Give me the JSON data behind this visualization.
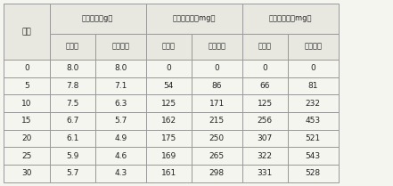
{
  "col_headers_top": [
    "秸秆重量（g）",
    "还原糖含量（mg）",
    "粗蛋白含量（mg）"
  ],
  "col_headers_sub": [
    "肠杆菌",
    "复合菌剂",
    "肠杆菌",
    "复合菌剂",
    "肠杆菌",
    "复合菌剂"
  ],
  "row_header": "天数",
  "rows": [
    [
      "0",
      "8.0",
      "8.0",
      "0",
      "0",
      "0",
      "0"
    ],
    [
      "5",
      "7.8",
      "7.1",
      "54",
      "86",
      "66",
      "81"
    ],
    [
      "10",
      "7.5",
      "6.3",
      "125",
      "171",
      "125",
      "232"
    ],
    [
      "15",
      "6.7",
      "5.7",
      "162",
      "215",
      "256",
      "453"
    ],
    [
      "20",
      "6.1",
      "4.9",
      "175",
      "250",
      "307",
      "521"
    ],
    [
      "25",
      "5.9",
      "4.6",
      "169",
      "265",
      "322",
      "543"
    ],
    [
      "30",
      "5.7",
      "4.3",
      "161",
      "298",
      "331",
      "528"
    ]
  ],
  "bg_color": "#f5f5f0",
  "border_color": "#999999",
  "header_bg": "#e8e8e0",
  "text_color": "#222222"
}
